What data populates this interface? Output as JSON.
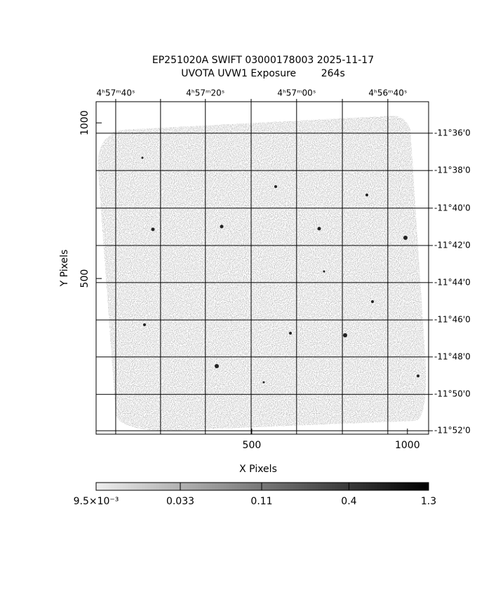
{
  "chart_data": {
    "type": "image",
    "title": "EP251020A SWIFT 03000178003 2025-11-17",
    "subtitle": "UVOTA UVW1 Exposure        264s",
    "x_label": "X Pixels",
    "y_label": "Y Pixels",
    "xlim": [
      0,
      1068
    ],
    "ylim": [
      0,
      1068
    ],
    "xticks": [
      500,
      1000
    ],
    "yticks": [
      500,
      1000
    ],
    "x2ticks": [
      {
        "value": 63,
        "label": "4ʰ57ᵐ40ˢ"
      },
      {
        "value": 351,
        "label": "4ʰ57ᵐ20ˢ"
      },
      {
        "value": 644,
        "label": "4ʰ57ᵐ00ˢ"
      },
      {
        "value": 937,
        "label": "4ʰ56ᵐ40ˢ"
      }
    ],
    "x2minor": [
      207,
      498,
      791
    ],
    "y2ticks": [
      {
        "value": 967,
        "label": "-11°36'0"
      },
      {
        "value": 847,
        "label": "-11°38'0"
      },
      {
        "value": 726,
        "label": "-11°40'0"
      },
      {
        "value": 606,
        "label": "-11°42'0"
      },
      {
        "value": 487,
        "label": "-11°44'0"
      },
      {
        "value": 367,
        "label": "-11°46'0"
      },
      {
        "value": 248,
        "label": "-11°48'0"
      },
      {
        "value": 128,
        "label": "-11°50'0"
      },
      {
        "value": 11,
        "label": "-11°52'0"
      }
    ],
    "grid": true,
    "clim": [
      0.0095,
      1.3
    ],
    "colorbar_log": true,
    "colorbar_ticks": [
      {
        "value": 0.0095,
        "label": "9.5×10⁻³"
      },
      {
        "value": 0.033,
        "label": "0.033"
      },
      {
        "value": 0.11,
        "label": "0.11"
      },
      {
        "value": 0.4,
        "label": "0.4"
      },
      {
        "value": 1.3,
        "label": "1.3"
      }
    ]
  }
}
